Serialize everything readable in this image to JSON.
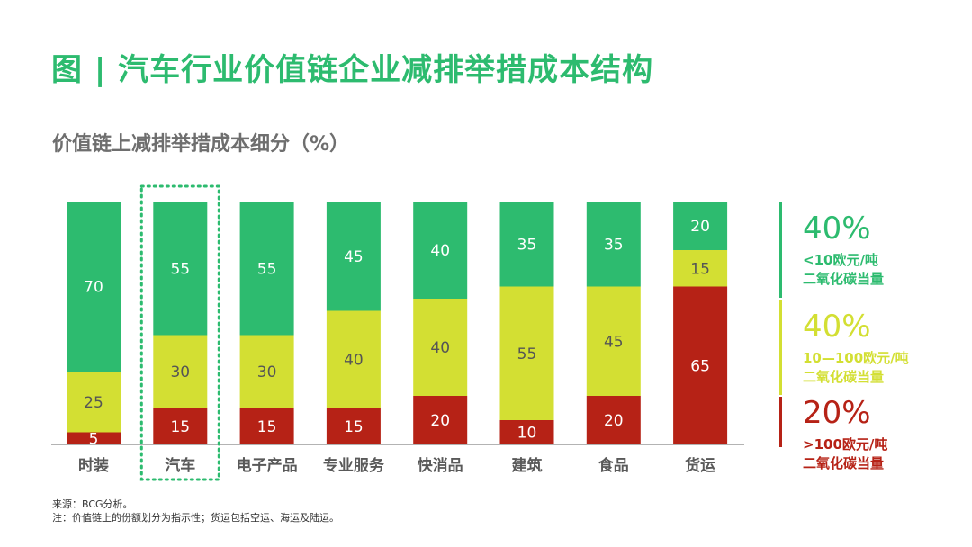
{
  "title": "图 | 汽车行业价值链企业减排举措成本结构",
  "subtitle": "价值链上减排举措成本细分（%）",
  "colors": {
    "green": "#2dbb6f",
    "yellow": "#d3df33",
    "red": "#b62216",
    "title": "#2dbb6f",
    "axis": "#9a9a9a",
    "dotted": "#2dbb6f"
  },
  "chart_data": {
    "type": "bar",
    "stacked": true,
    "categories": [
      "时装",
      "汽车",
      "电子产品",
      "专业服务",
      "快消品",
      "建筑",
      "食品",
      "货运"
    ],
    "highlight_category": "汽车",
    "ylim": [
      0,
      100
    ],
    "series": [
      {
        "name": ">100欧元/吨二氧化碳当量",
        "color_key": "red",
        "values": [
          5,
          15,
          15,
          15,
          20,
          10,
          20,
          65
        ]
      },
      {
        "name": "10—100欧元/吨二氧化碳当量",
        "color_key": "yellow",
        "values": [
          25,
          30,
          30,
          40,
          40,
          55,
          45,
          15
        ]
      },
      {
        "name": "<10欧元/吨二氧化碳当量",
        "color_key": "green",
        "values": [
          70,
          55,
          55,
          45,
          40,
          35,
          35,
          20
        ]
      }
    ]
  },
  "legend": [
    {
      "pct": "40%",
      "line1": "<10欧元/吨",
      "line2": "二氧化碳当量",
      "color_key": "green"
    },
    {
      "pct": "40%",
      "line1": "10—100欧元/吨",
      "line2": "二氧化碳当量",
      "color_key": "yellow"
    },
    {
      "pct": "20%",
      "line1": ">100欧元/吨",
      "line2": "二氧化碳当量",
      "color_key": "red"
    }
  ],
  "footnotes": {
    "source": "来源：BCG分析。",
    "note": "注：价值链上的份额划分为指示性；货运包括空运、海运及陆运。"
  }
}
